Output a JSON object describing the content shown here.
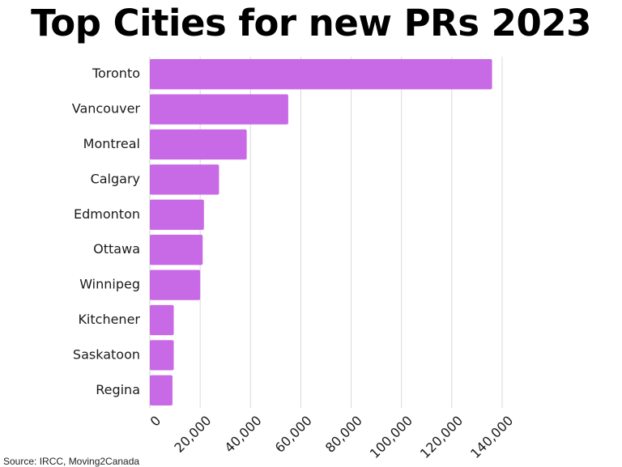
{
  "chart_data": {
    "type": "bar",
    "orientation": "horizontal",
    "title": "Top Cities for new PRs 2023",
    "categories": [
      "Toronto",
      "Vancouver",
      "Montreal",
      "Calgary",
      "Edmonton",
      "Ottawa",
      "Winnipeg",
      "Kitchener",
      "Saskatoon",
      "Regina"
    ],
    "values": [
      136000,
      55000,
      38500,
      27500,
      21500,
      21000,
      20000,
      9500,
      9500,
      9000
    ],
    "xlim": [
      0,
      140000
    ],
    "xticks": [
      0,
      20000,
      40000,
      60000,
      80000,
      100000,
      120000,
      140000
    ],
    "xtick_labels": [
      "0",
      "20,000",
      "40,000",
      "60,000",
      "80,000",
      "100,000",
      "120,000",
      "140,000"
    ],
    "xlabel": "",
    "ylabel": "",
    "grid": "vertical",
    "bar_color": "#c86ae6",
    "source": "Source: IRCC, Moving2Canada"
  }
}
